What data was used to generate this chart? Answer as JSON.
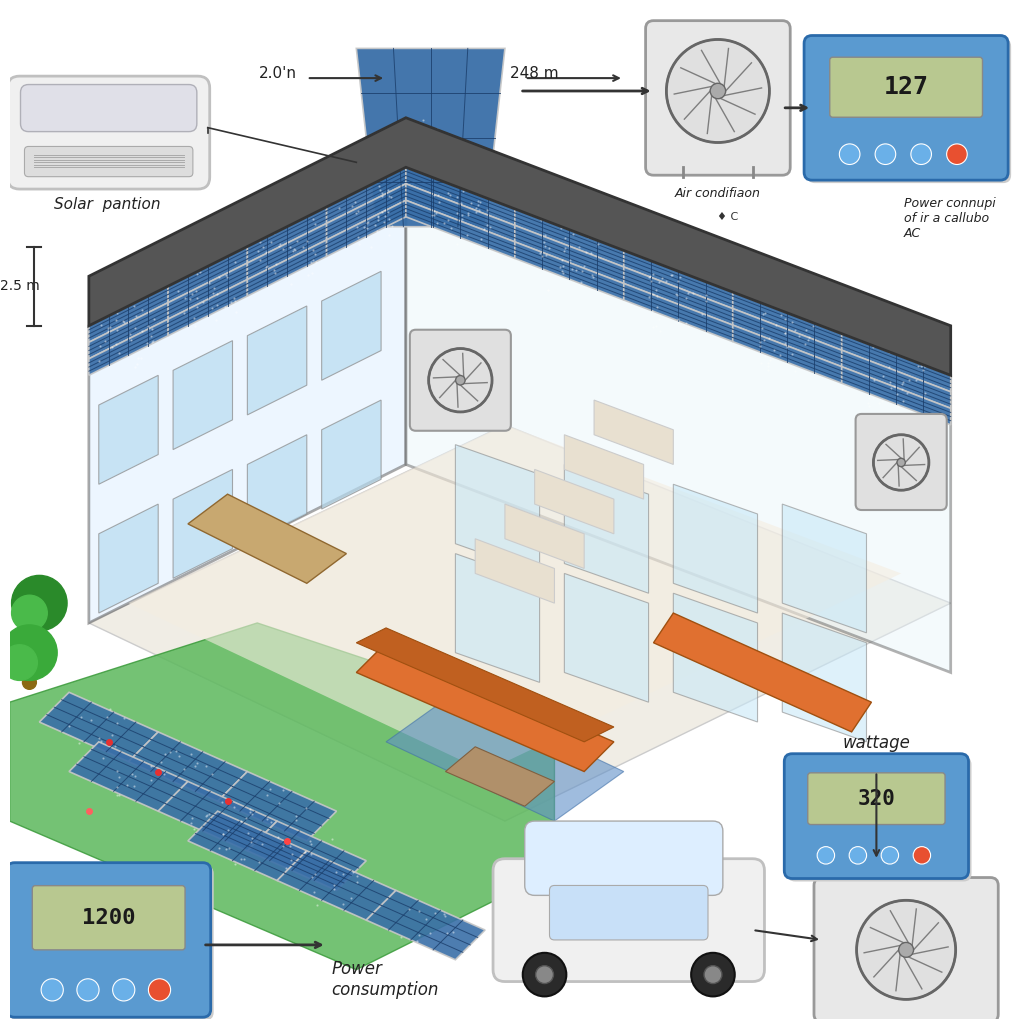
{
  "bg_color": "#f8f8f8",
  "labels": {
    "solar_panel": "Solar  pantion",
    "air_conditioner": "Air condifiaon",
    "power_consumption_ac": "Power connupi\nof ir a callubo\nAC",
    "power_consumption": "Power\nconsumption",
    "wattage": "wattage",
    "panel_size_top_left": "2.0'n",
    "panel_size_top_right": "248 m",
    "panel_size_side": "2.5 m",
    "display_top_value": "127",
    "display_bottom_value": "1200",
    "display_wattage_value": "320"
  },
  "solar_blue": "#3a6fa8",
  "solar_dark": "#1a3d6a",
  "solar_light": "#5a8fc8",
  "roof_dark": "#444444",
  "grass_green": "#5cb85c",
  "grass_dark": "#3a9a3a",
  "wall_color": "#ddeeff",
  "floor_color": "#f5ede0",
  "display_blue": "#5a9ad0",
  "display_screen": "#c8dca0",
  "ac_gray": "#d8d8d8",
  "ac_dark": "#888888"
}
